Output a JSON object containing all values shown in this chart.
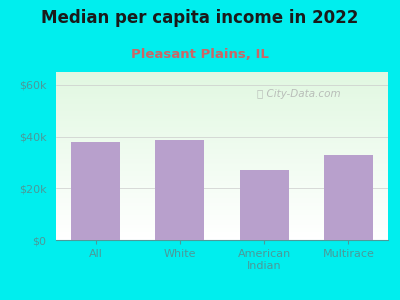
{
  "title": "Median per capita income in 2022",
  "subtitle": "Pleasant Plains, IL",
  "categories": [
    "All",
    "White",
    "American\nIndian",
    "Multirace"
  ],
  "values": [
    38000,
    38500,
    27000,
    33000
  ],
  "bar_color": "#b8a0cc",
  "background_color": "#00EEEE",
  "title_color": "#1a1a1a",
  "subtitle_color": "#cc6666",
  "axis_color": "#4a9a9a",
  "tick_color": "#4a9a9a",
  "yticks": [
    0,
    20000,
    40000,
    60000
  ],
  "ytick_labels": [
    "$0",
    "$20k",
    "$40k",
    "$60k"
  ],
  "ylim": [
    0,
    65000
  ],
  "watermark": "City-Data.com",
  "title_fontsize": 12,
  "subtitle_fontsize": 9.5,
  "tick_fontsize": 8
}
